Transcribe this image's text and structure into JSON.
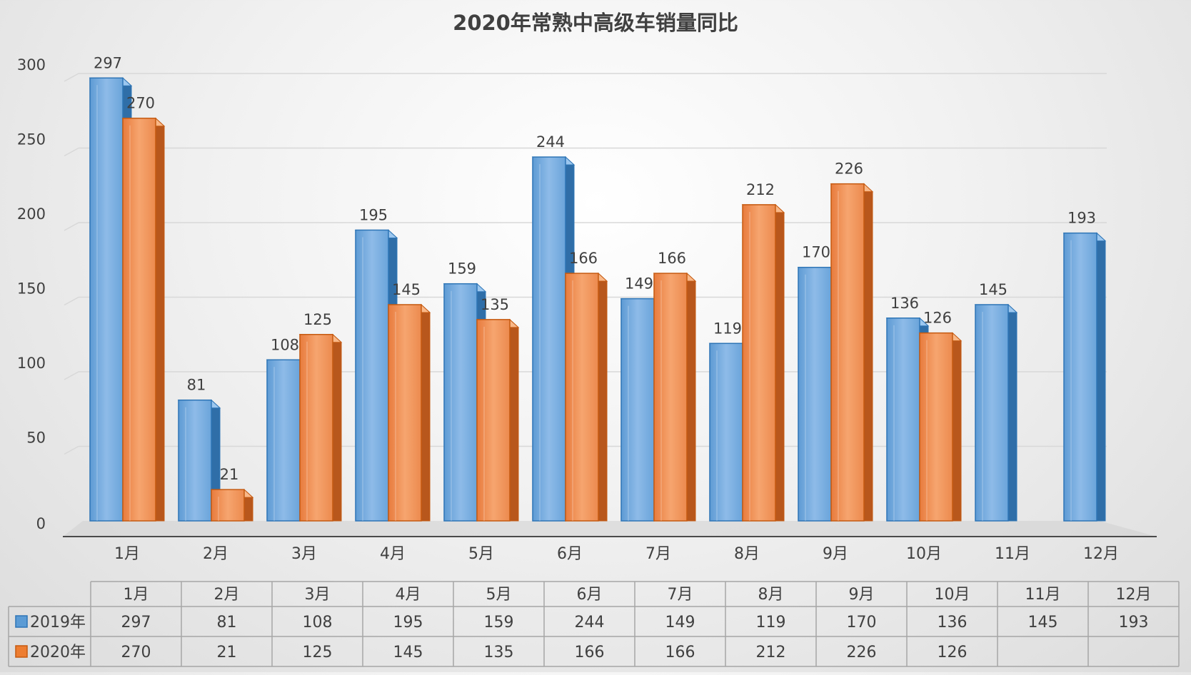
{
  "chart_data": {
    "type": "bar",
    "title": "2020年常熟中高级车销量同比",
    "categories": [
      "1月",
      "2月",
      "3月",
      "4月",
      "5月",
      "6月",
      "7月",
      "8月",
      "9月",
      "10月",
      "11月",
      "12月"
    ],
    "series": [
      {
        "name": "2019年",
        "color": "#5b9bd5",
        "values": [
          297,
          81,
          108,
          195,
          159,
          244,
          149,
          119,
          170,
          136,
          145,
          193
        ]
      },
      {
        "name": "2020年",
        "color": "#ed7d31",
        "values": [
          270,
          21,
          125,
          145,
          135,
          166,
          166,
          212,
          226,
          126,
          null,
          null
        ]
      }
    ],
    "ylim": [
      0,
      300
    ],
    "yticks": [
      0,
      50,
      100,
      150,
      200,
      250,
      300
    ],
    "grid": true,
    "data_table": true
  }
}
